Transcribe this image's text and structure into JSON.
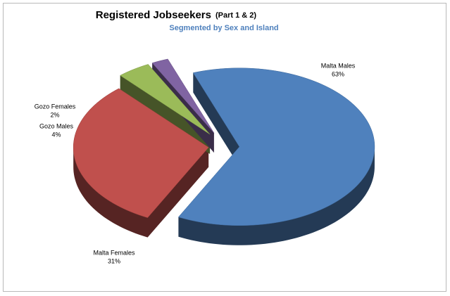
{
  "chart_data": {
    "type": "pie3d",
    "title": "Registered Jobseekers",
    "title_suffix": "(Part 1 & 2)",
    "subtitle": "Segmented by Sex and Island",
    "categories": [
      "Malta Males",
      "Malta Females",
      "Gozo Males",
      "Gozo Females"
    ],
    "values": [
      63,
      31,
      4,
      2
    ],
    "value_labels": [
      "63%",
      "31%",
      "4%",
      "2%"
    ],
    "colors": [
      "#4f81bd",
      "#c0504d",
      "#9bbb59",
      "#8064a2"
    ]
  }
}
